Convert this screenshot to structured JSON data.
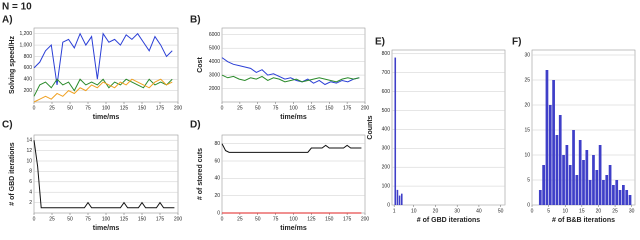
{
  "title": "N = 10",
  "chart_data": [
    {
      "type": "line",
      "panel": "A)",
      "xlabel": "time/ms",
      "ylabel": "Solving speed/Hz",
      "x": [
        0,
        8,
        16,
        24,
        32,
        40,
        48,
        56,
        64,
        72,
        80,
        88,
        96,
        104,
        112,
        120,
        128,
        136,
        144,
        152,
        160,
        168,
        176,
        184,
        192
      ],
      "xlim": [
        0,
        200
      ],
      "xticks": [
        0,
        25,
        50,
        75,
        100,
        125,
        150,
        175,
        200
      ],
      "ylim": [
        0,
        1300
      ],
      "yticks": [
        200,
        400,
        600,
        800,
        {
          "value": 1000,
          "label": "1,000"
        },
        {
          "value": 1200,
          "label": "1,200"
        }
      ],
      "grid": true,
      "series": [
        {
          "color": "#2b3fd6",
          "values": [
            600,
            700,
            900,
            1000,
            300,
            1050,
            1100,
            950,
            1200,
            1000,
            1150,
            400,
            1200,
            1050,
            1100,
            1000,
            1180,
            1100,
            1200,
            1050,
            900,
            1150,
            1000,
            800,
            900
          ]
        },
        {
          "color": "#2a8a2a",
          "values": [
            100,
            300,
            350,
            250,
            400,
            300,
            350,
            200,
            400,
            300,
            350,
            300,
            400,
            250,
            350,
            300,
            400,
            350,
            300,
            250,
            400,
            300,
            350,
            300,
            400
          ]
        },
        {
          "color": "#f0a020",
          "values": [
            0,
            50,
            100,
            50,
            150,
            100,
            200,
            150,
            250,
            200,
            300,
            250,
            350,
            300,
            250,
            350,
            300,
            400,
            350,
            300,
            250,
            350,
            400,
            300,
            350
          ]
        }
      ]
    },
    {
      "type": "line",
      "panel": "B)",
      "xlabel": "time/ms",
      "ylabel": "Cost",
      "x": [
        0,
        8,
        16,
        24,
        32,
        40,
        48,
        56,
        64,
        72,
        80,
        88,
        96,
        104,
        112,
        120,
        128,
        136,
        144,
        152,
        160,
        168,
        176,
        184,
        192
      ],
      "xlim": [
        0,
        200
      ],
      "xticks": [
        0,
        25,
        50,
        75,
        100,
        125,
        150,
        175,
        200
      ],
      "ylim": [
        1000,
        6500
      ],
      "yticks": [
        2000,
        3000,
        4000,
        5000,
        6000
      ],
      "grid": true,
      "series": [
        {
          "color": "#2b3fd6",
          "values": [
            4300,
            4000,
            3800,
            3700,
            3600,
            3500,
            3200,
            3400,
            3000,
            3100,
            2900,
            2700,
            2800,
            2600,
            2500,
            2700,
            2400,
            2600,
            2300,
            2500,
            2400,
            2600,
            2500,
            2700,
            2800
          ]
        },
        {
          "color": "#2a8a2a",
          "values": [
            3000,
            2800,
            2900,
            2700,
            2600,
            2800,
            2700,
            2900,
            2600,
            2800,
            2700,
            2500,
            2600,
            2700,
            2500,
            2600,
            2700,
            2800,
            2700,
            2600,
            2500,
            2700,
            2800,
            2700,
            2800
          ]
        }
      ]
    },
    {
      "type": "line",
      "panel": "C)",
      "xlabel": "time/ms",
      "ylabel": "# of GBD iterations",
      "x": [
        0,
        5,
        10,
        70,
        75,
        80,
        120,
        125,
        130,
        145,
        150,
        155,
        170,
        175,
        180,
        195
      ],
      "xlim": [
        0,
        200
      ],
      "xticks": [
        0,
        25,
        50,
        75,
        100,
        125,
        150,
        175,
        200
      ],
      "ylim": [
        0,
        15
      ],
      "yticks": [
        2,
        4,
        6,
        8,
        10,
        12,
        14
      ],
      "grid": true,
      "series": [
        {
          "color": "#111111",
          "values": [
            14,
            9,
            1,
            1,
            2,
            1,
            1,
            2,
            1,
            1,
            2,
            1,
            1,
            2,
            1,
            1
          ]
        }
      ]
    },
    {
      "type": "line",
      "panel": "D)",
      "xlabel": "time/ms",
      "ylabel": "# of stored cuts",
      "x": [
        0,
        5,
        10,
        120,
        125,
        130,
        140,
        145,
        150,
        170,
        175,
        180,
        195
      ],
      "xlim": [
        0,
        200
      ],
      "xticks": [
        0,
        25,
        50,
        75,
        100,
        125,
        150,
        175,
        200
      ],
      "ylim": [
        0,
        90
      ],
      "yticks": [
        0,
        20,
        40,
        60,
        80
      ],
      "grid": true,
      "series": [
        {
          "color": "#111111",
          "values": [
            80,
            72,
            70,
            70,
            75,
            75,
            75,
            78,
            75,
            75,
            78,
            75,
            75
          ]
        },
        {
          "color": "#e02020",
          "values": [
            0,
            0,
            0,
            0,
            0,
            0,
            0,
            0,
            0,
            0,
            0,
            0,
            0
          ]
        }
      ]
    },
    {
      "type": "histogram",
      "panel": "E)",
      "xlabel": "# of GBD iterations",
      "ylabel": "Counts",
      "bins": [
        1,
        2,
        3,
        4,
        5
      ],
      "values": [
        780,
        80,
        50,
        60
      ],
      "color": "#3f3fc8",
      "xlim": [
        0,
        52
      ],
      "xticks": [
        1,
        10,
        20,
        30,
        40,
        50
      ],
      "ylim": [
        0,
        820
      ],
      "yticks": [
        0,
        100,
        200,
        300,
        400,
        500,
        600,
        700,
        800
      ],
      "grid": true
    },
    {
      "type": "histogram",
      "panel": "F)",
      "xlabel": "# of B&B iterations",
      "ylabel": "",
      "bins": [
        2,
        3,
        4,
        5,
        6,
        7,
        8,
        9,
        10,
        11,
        12,
        13,
        14,
        15,
        16,
        17,
        18,
        19,
        20,
        21,
        22,
        23,
        24,
        25,
        26,
        27,
        28,
        29,
        30
      ],
      "values": [
        3,
        8,
        27,
        20,
        25,
        14,
        18,
        10,
        12,
        8,
        15,
        6,
        13,
        9,
        11,
        5,
        10,
        7,
        12,
        5,
        6,
        8,
        4,
        5,
        3,
        4,
        3,
        2
      ],
      "color": "#3f3fc8",
      "xlim": [
        0,
        31
      ],
      "xticks": [
        0,
        5,
        10,
        15,
        20,
        25,
        30
      ],
      "ylim": [
        0,
        31
      ],
      "yticks": [
        0,
        5,
        10,
        15,
        20,
        25,
        30
      ],
      "grid": true
    }
  ]
}
